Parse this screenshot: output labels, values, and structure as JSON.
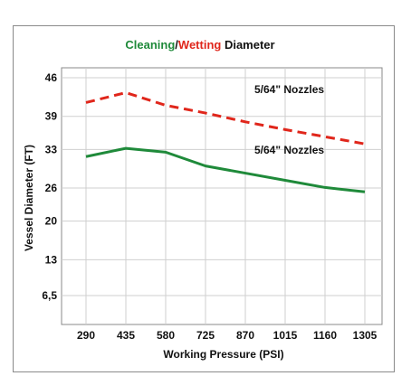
{
  "chart_data": {
    "type": "line",
    "title_parts": [
      {
        "text": "Cleaning",
        "color": "#1f8a3a"
      },
      {
        "text": "/",
        "color": "#111111"
      },
      {
        "text": "Wetting",
        "color": "#e0261b"
      },
      {
        "text": " Diameter",
        "color": "#111111"
      }
    ],
    "xlabel": "Working Pressure (PSI)",
    "ylabel": "Vessel Diameter (FT)",
    "x": [
      290,
      435,
      580,
      725,
      870,
      1015,
      1160,
      1305
    ],
    "x_tick_labels": [
      "290",
      "435",
      "580",
      "725",
      "870",
      "1015",
      "1160",
      "1305"
    ],
    "y_ticks": [
      6.5,
      13,
      20,
      26,
      33,
      39,
      46
    ],
    "y_tick_labels": [
      "6,5",
      "13",
      "20",
      "26",
      "33",
      "39",
      "46"
    ],
    "ylim": [
      0,
      46
    ],
    "grid": true,
    "series": [
      {
        "name": "Wetting",
        "color": "#e0261b",
        "dashed": true,
        "values": [
          41.5,
          43.3,
          41.0,
          39.6,
          38.0,
          36.6,
          35.3,
          34.0
        ],
        "annotation": "5/64\" Nozzles"
      },
      {
        "name": "Cleaning",
        "color": "#1f8a3a",
        "dashed": false,
        "values": [
          31.7,
          33.2,
          32.5,
          30.0,
          28.7,
          27.4,
          26.1,
          25.3
        ],
        "annotation": "5/64\" Nozzles"
      }
    ]
  }
}
